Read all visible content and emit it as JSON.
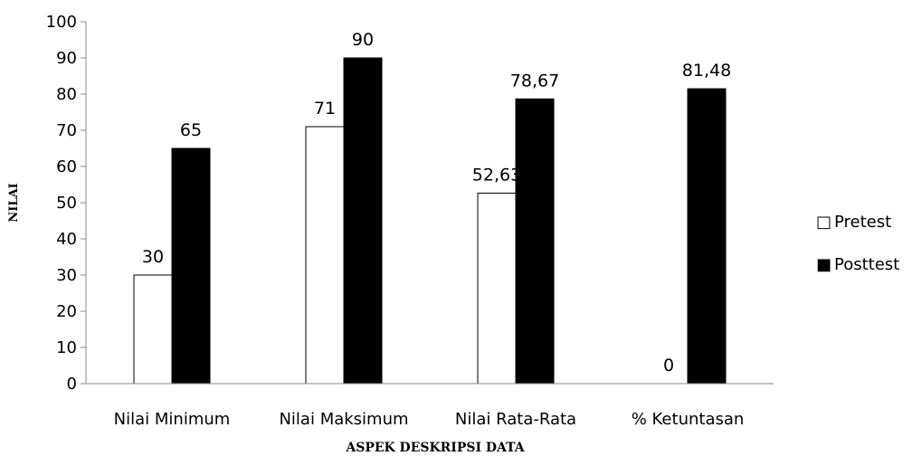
{
  "chart_data": {
    "type": "bar",
    "title": "",
    "xlabel": "ASPEK DESKRIPSI DATA",
    "ylabel": "NILAI",
    "ylim": [
      0,
      100
    ],
    "ytick_step": 10,
    "grid": false,
    "legend_position": "right",
    "categories": [
      "Nilai Minimum",
      "Nilai Maksimum",
      "Nilai Rata-Rata",
      "% Ketuntasan"
    ],
    "series": [
      {
        "name": "Pretest",
        "values": [
          30,
          71,
          52.63,
          0
        ],
        "labels": [
          "30",
          "71",
          "52,63",
          "0"
        ],
        "color": "#ffffff",
        "legend_symbol": "□"
      },
      {
        "name": "Posttest",
        "values": [
          65,
          90,
          78.67,
          81.48
        ],
        "labels": [
          "65",
          "90",
          "78,67",
          "81,48"
        ],
        "color": "#000000",
        "legend_symbol": "■"
      }
    ]
  }
}
